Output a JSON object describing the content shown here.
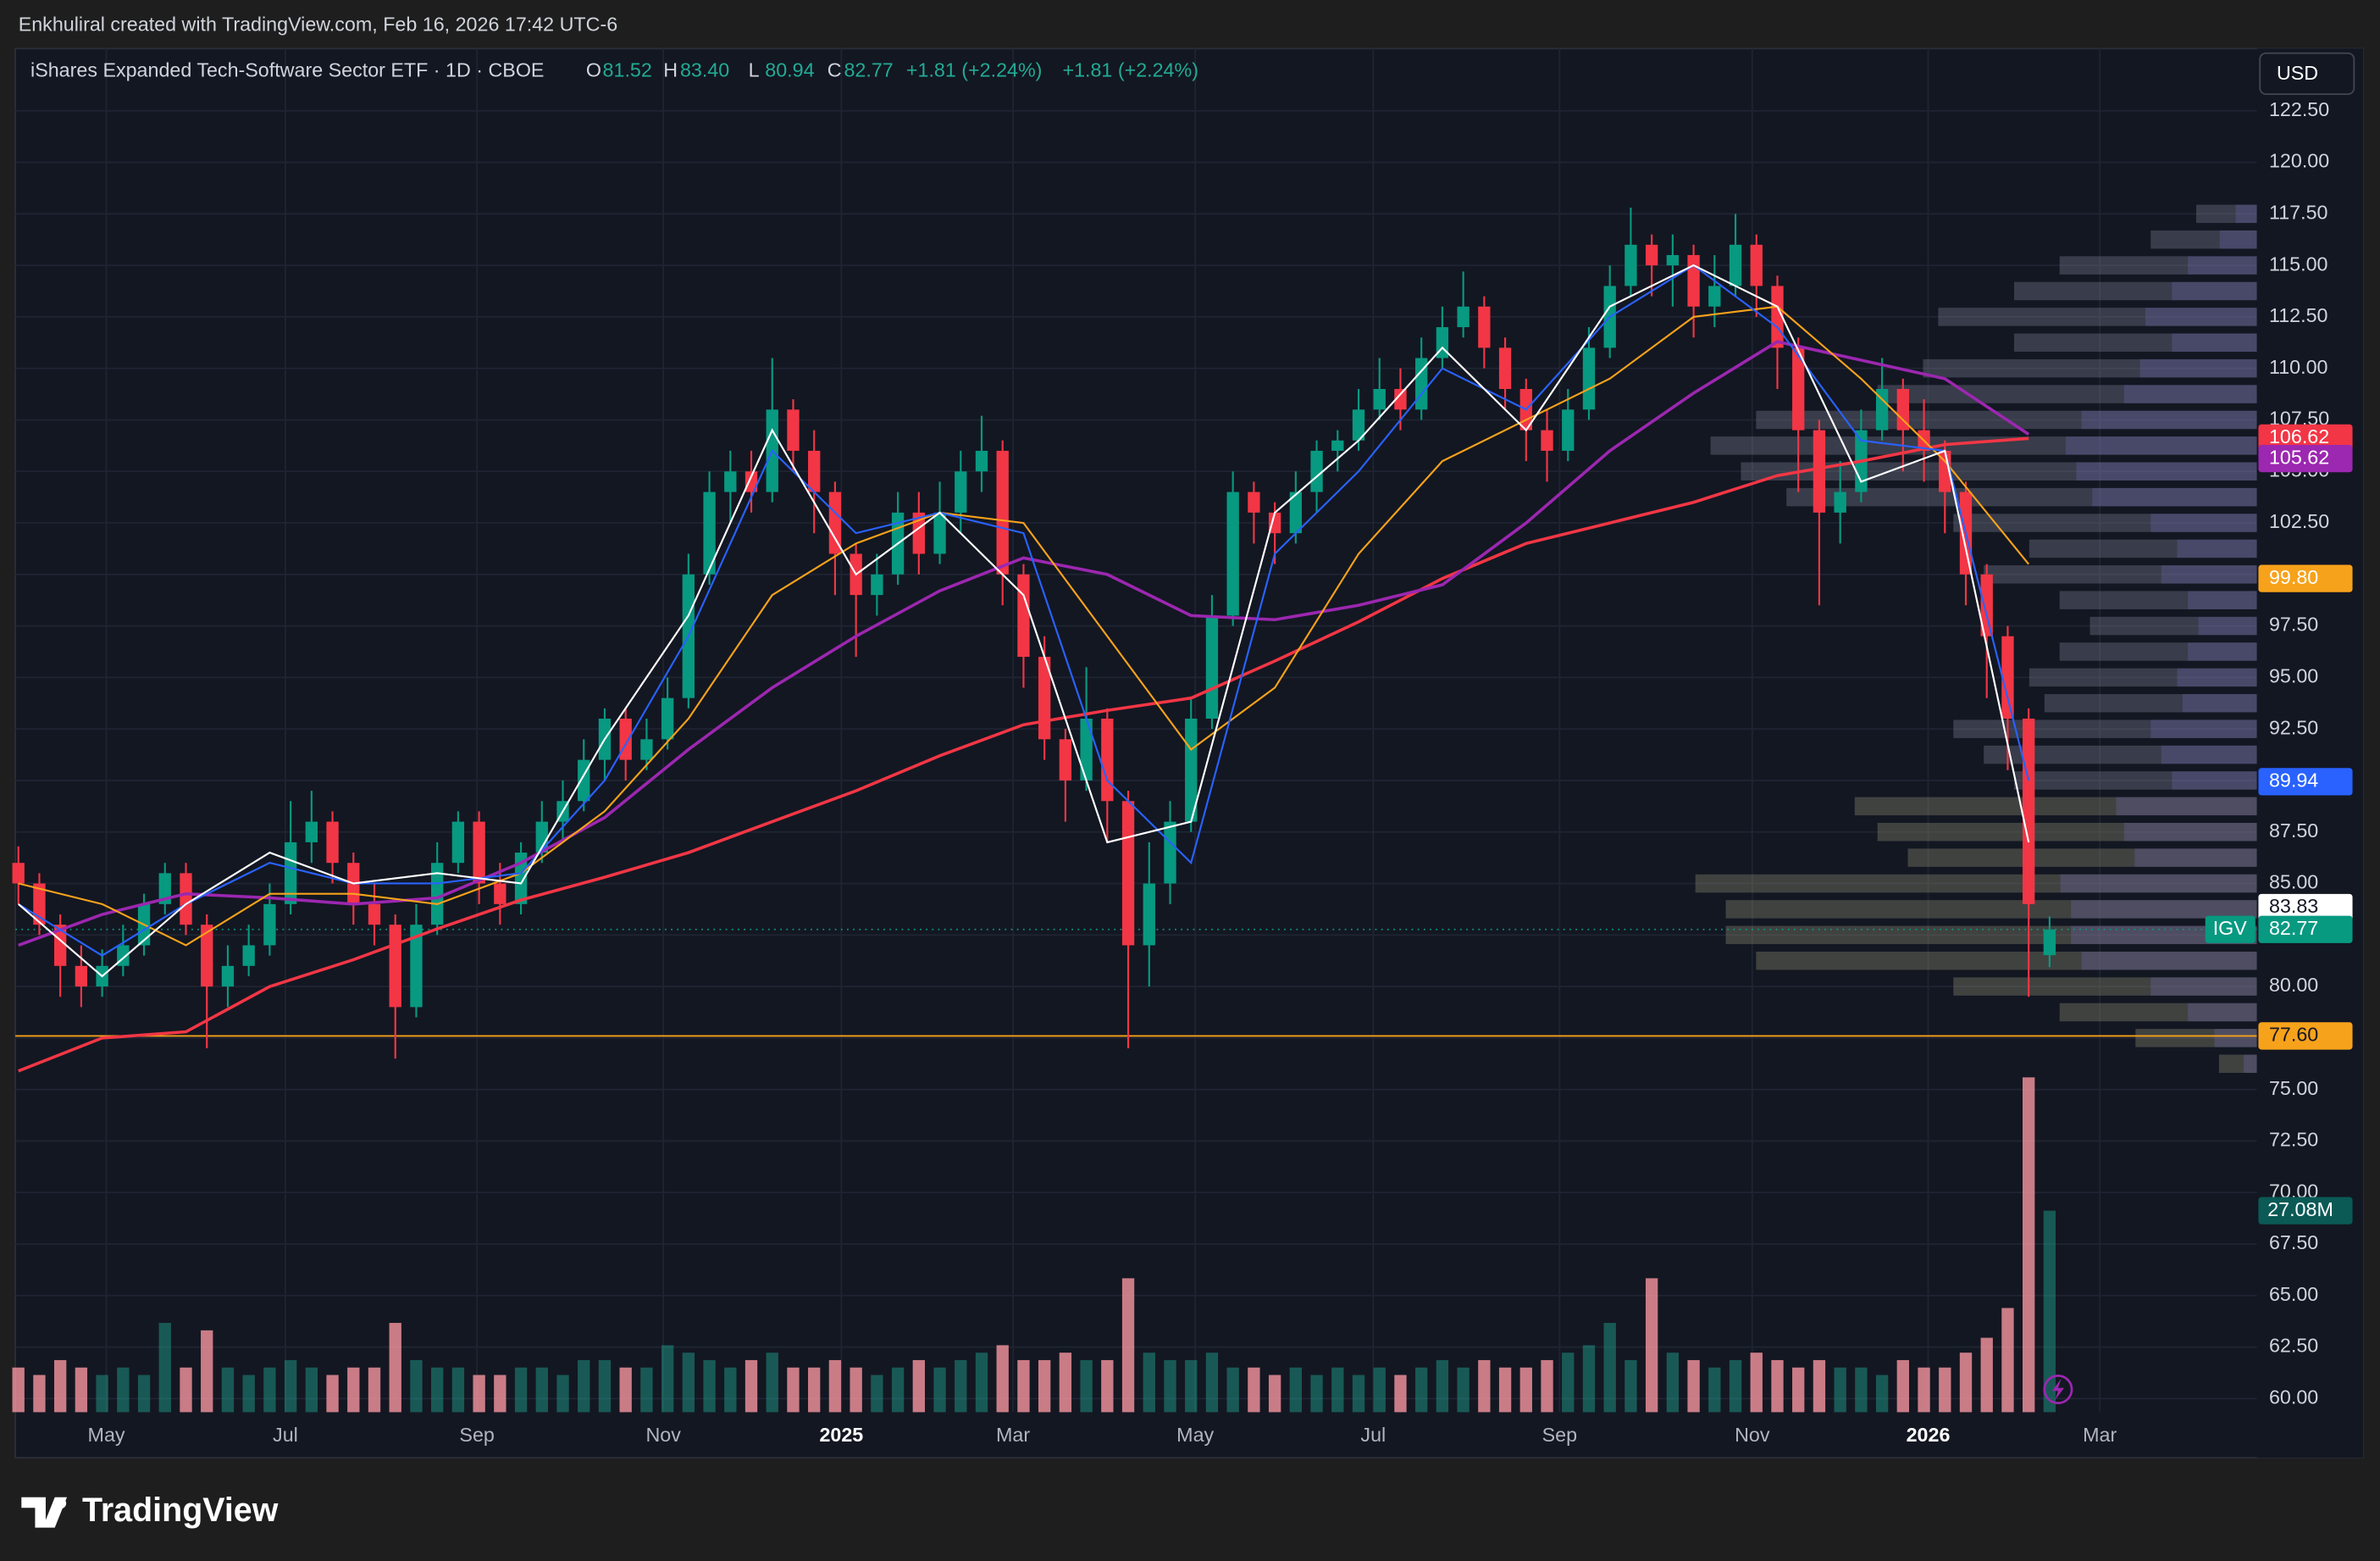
{
  "watermark": "Enkhuliral created with TradingView.com, Feb 16, 2026 17:42 UTC-6",
  "brand": "TradingView",
  "chart_data": {
    "type": "candlestick",
    "title": "iShares Expanded Tech-Software Sector ETF · 1D · CBOE",
    "legend_keys": [
      "O",
      "H",
      "L",
      "C"
    ],
    "legend_values": [
      81.52,
      {
        "value": 83.4,
        "label": "83.40"
      },
      80.94,
      82.77
    ],
    "change_labels": [
      "+1.81 (+2.24%)",
      "+1.81 (+2.24%)"
    ],
    "symbol": "IGV",
    "currency": "USD",
    "up_color": "#089981",
    "down_color": "#f23645",
    "xlim": [
      0,
      106.9
    ],
    "ylim": [
      59.34,
      125.52
    ],
    "volume_ylim": [
      0,
      50
    ],
    "xticks": [
      {
        "value": 4.2,
        "label": "May"
      },
      {
        "value": 12.75,
        "label": "Jul"
      },
      {
        "value": 21.9,
        "label": "Sep"
      },
      {
        "value": 30.8,
        "label": "Nov"
      },
      {
        "value": 39.3,
        "label": "2025"
      },
      {
        "value": 47.5,
        "label": "Mar"
      },
      {
        "value": 56.2,
        "label": "May"
      },
      {
        "value": 64.7,
        "label": "Jul"
      },
      {
        "value": 73.6,
        "label": "Sep"
      },
      {
        "value": 82.8,
        "label": "Nov"
      },
      {
        "value": 91.2,
        "label": "2026"
      },
      {
        "value": 99.4,
        "label": "Mar"
      }
    ],
    "yticks": [
      {
        "value": 60,
        "label": "60.00"
      },
      {
        "value": 62.5,
        "label": "62.50"
      },
      {
        "value": 65,
        "label": "65.00"
      },
      {
        "value": 67.5,
        "label": "67.50"
      },
      {
        "value": 70,
        "label": "70.00"
      },
      {
        "value": 72.5,
        "label": "72.50"
      },
      {
        "value": 75,
        "label": "75.00"
      },
      {
        "value": 77.5,
        "label": "77.50"
      },
      {
        "value": 80,
        "label": "80.00"
      },
      {
        "value": 82.5,
        "label": "82.50"
      },
      {
        "value": 85,
        "label": "85.00"
      },
      {
        "value": 87.5,
        "label": "87.50"
      },
      {
        "value": 90,
        "label": "90.00"
      },
      {
        "value": 92.5,
        "label": "92.50"
      },
      {
        "value": 95,
        "label": "95.00"
      },
      {
        "value": 97.5,
        "label": "97.50"
      },
      {
        "value": 100,
        "label": "100.00"
      },
      {
        "value": 102.5,
        "label": "102.50"
      },
      {
        "value": 105,
        "label": "105.00"
      },
      {
        "value": 107.5,
        "label": "107.50"
      },
      {
        "value": 110,
        "label": "110.00"
      },
      {
        "value": 112.5,
        "label": "112.50"
      },
      {
        "value": 115,
        "label": "115.00"
      },
      {
        "value": 117.5,
        "label": "117.50"
      },
      {
        "value": 120,
        "label": "120.00"
      },
      {
        "value": 122.5,
        "label": "122.50"
      }
    ],
    "candles": [
      [
        86,
        86.8,
        84,
        85
      ],
      [
        85,
        85.5,
        82.5,
        83
      ],
      [
        83,
        83.5,
        79.5,
        81
      ],
      [
        81,
        82,
        79,
        80
      ],
      [
        80,
        81.8,
        79.5,
        81
      ],
      [
        81,
        83,
        80.5,
        82
      ],
      [
        82,
        84.5,
        81.5,
        84
      ],
      [
        84,
        86,
        83.5,
        85.5
      ],
      [
        85.5,
        86,
        82.5,
        83
      ],
      [
        83,
        83.5,
        77,
        80
      ],
      [
        80,
        82,
        79,
        81
      ],
      [
        81,
        83,
        80.5,
        82
      ],
      [
        82,
        85,
        81.5,
        84
      ],
      [
        84,
        89,
        83.5,
        87
      ],
      [
        87,
        89.5,
        86,
        88
      ],
      [
        88,
        88.5,
        85,
        86
      ],
      [
        86,
        86.5,
        83,
        84
      ],
      [
        84,
        85,
        82,
        83
      ],
      [
        83,
        83.5,
        76.5,
        79
      ],
      [
        79,
        84,
        78.5,
        83
      ],
      [
        83,
        87,
        82.5,
        86
      ],
      [
        86,
        88.5,
        85.5,
        88
      ],
      [
        88,
        88.5,
        84,
        85
      ],
      [
        85,
        86,
        83,
        84
      ],
      [
        84,
        87,
        83.5,
        86.5
      ],
      [
        86.5,
        89,
        86,
        88
      ],
      [
        88,
        90,
        87,
        89
      ],
      [
        89,
        92,
        88.5,
        91
      ],
      [
        91,
        93.5,
        90,
        93
      ],
      [
        93,
        93.5,
        90,
        91
      ],
      [
        91,
        93,
        90.5,
        92
      ],
      [
        92,
        95,
        91.5,
        94
      ],
      [
        94,
        101,
        93.5,
        100
      ],
      [
        100,
        105,
        99.5,
        104
      ],
      [
        104,
        106,
        102.5,
        105
      ],
      [
        105,
        106,
        103,
        104
      ],
      [
        104,
        110.5,
        103.5,
        108
      ],
      [
        108,
        108.5,
        105,
        106
      ],
      [
        106,
        107,
        102,
        104
      ],
      [
        104,
        104.5,
        99,
        101
      ],
      [
        101,
        101.5,
        96,
        99
      ],
      [
        99,
        101,
        98,
        100
      ],
      [
        100,
        104,
        99.5,
        103
      ],
      [
        103,
        104,
        100,
        101
      ],
      [
        101,
        104.5,
        100.5,
        103
      ],
      [
        103,
        106,
        102,
        105
      ],
      [
        105,
        107.7,
        104,
        106
      ],
      [
        106,
        106.5,
        98.5,
        100
      ],
      [
        100,
        100.5,
        94.5,
        96
      ],
      [
        96,
        97,
        91,
        92
      ],
      [
        92,
        92.5,
        88,
        90
      ],
      [
        90,
        95.5,
        89.5,
        93
      ],
      [
        93,
        93.5,
        87,
        89
      ],
      [
        89,
        89.5,
        77,
        82
      ],
      [
        82,
        87,
        80,
        85
      ],
      [
        85,
        89,
        84,
        88
      ],
      [
        88,
        94,
        87.5,
        93
      ],
      [
        93,
        99,
        92.5,
        98
      ],
      [
        98,
        105,
        97.5,
        104
      ],
      [
        104,
        104.5,
        101.5,
        103
      ],
      [
        103,
        103.5,
        100.5,
        102
      ],
      [
        102,
        105,
        101.5,
        104
      ],
      [
        104,
        106.5,
        103,
        106
      ],
      [
        106,
        107,
        105,
        106.5
      ],
      [
        106.5,
        109,
        106,
        108
      ],
      [
        108,
        110.5,
        107.5,
        109
      ],
      [
        109,
        110,
        107,
        108
      ],
      [
        108,
        111.5,
        107.5,
        110.5
      ],
      [
        110.5,
        113,
        110,
        112
      ],
      [
        112,
        114.7,
        111.5,
        113
      ],
      [
        113,
        113.5,
        110,
        111
      ],
      [
        111,
        111.5,
        108,
        109
      ],
      [
        109,
        109.5,
        105.5,
        107
      ],
      [
        107,
        108,
        104.5,
        106
      ],
      [
        106,
        109,
        105.5,
        108
      ],
      [
        108,
        112,
        107.5,
        111
      ],
      [
        111,
        115,
        110.5,
        114
      ],
      [
        114,
        117.8,
        113.5,
        116
      ],
      [
        116,
        116.5,
        113.5,
        115
      ],
      [
        115,
        116.5,
        113,
        115.5
      ],
      [
        115.5,
        116,
        111.5,
        113
      ],
      [
        113,
        115.5,
        112,
        114
      ],
      [
        114,
        117.5,
        113.5,
        116
      ],
      [
        116,
        116.5,
        112.5,
        114
      ],
      [
        114,
        114.5,
        109,
        111
      ],
      [
        111,
        111.5,
        104,
        107
      ],
      [
        107,
        107.5,
        98.5,
        103
      ],
      [
        103,
        105.5,
        101.5,
        104
      ],
      [
        104,
        108,
        103.5,
        107
      ],
      [
        107,
        110.5,
        106.5,
        109
      ],
      [
        109,
        109.5,
        105,
        107
      ],
      [
        107,
        108.5,
        104.5,
        106
      ],
      [
        106,
        106.5,
        102,
        104
      ],
      [
        104,
        104.5,
        98.5,
        100
      ],
      [
        100,
        100.5,
        94,
        97
      ],
      [
        97,
        97.5,
        90.5,
        93
      ],
      [
        93,
        93.5,
        79.5,
        84
      ],
      [
        81.52,
        83.4,
        80.94,
        82.77
      ]
    ],
    "volumes": [
      6,
      5,
      7,
      6,
      5,
      6,
      5,
      12,
      6,
      11,
      6,
      5,
      6,
      7,
      6,
      5,
      6,
      6,
      12,
      7,
      6,
      6,
      5,
      5,
      6,
      6,
      5,
      7,
      7,
      6,
      6,
      9,
      8,
      7,
      6,
      7,
      8,
      6,
      6,
      7,
      6,
      5,
      6,
      7,
      6,
      7,
      8,
      9,
      7,
      7,
      8,
      7,
      7,
      18,
      8,
      7,
      7,
      8,
      6,
      6,
      5,
      6,
      5,
      6,
      5,
      6,
      5,
      6,
      7,
      6,
      7,
      6,
      6,
      7,
      8,
      9,
      12,
      7,
      18,
      8,
      7,
      6,
      7,
      8,
      7,
      6,
      7,
      6,
      6,
      5,
      7,
      6,
      6,
      8,
      10,
      14,
      45,
      27.08
    ],
    "volume_value_label": "27.08M",
    "ma_x": [
      0,
      4,
      8,
      12,
      16,
      20,
      24,
      28,
      32,
      36,
      40,
      44,
      48,
      52,
      56,
      60,
      64,
      68,
      72,
      76,
      80,
      84,
      88,
      92,
      96
    ],
    "series": [
      {
        "color": "#f23645",
        "values": [
          75.9,
          77.5,
          77.8,
          80,
          81.3,
          82.8,
          84.2,
          85.3,
          86.5,
          88,
          89.5,
          91.2,
          92.7,
          93.4,
          94,
          95.8,
          97.7,
          99.8,
          101.5,
          102.5,
          103.5,
          104.8,
          105.5,
          106.3,
          106.6
        ]
      },
      {
        "color": "#9c27b0",
        "values": [
          82,
          83.5,
          84.5,
          84.3,
          84,
          84.3,
          86,
          88.2,
          91.5,
          94.5,
          97,
          99.2,
          100.8,
          100,
          98,
          97.8,
          98.5,
          99.5,
          102.5,
          106,
          108.8,
          111.3,
          110.4,
          109.5,
          106.8
        ]
      },
      {
        "color": "#f7a21b",
        "values": [
          85,
          84,
          82,
          84.5,
          84.5,
          84,
          85.5,
          88.5,
          93,
          99,
          101.5,
          103,
          102.5,
          97,
          91.5,
          94.5,
          101,
          105.5,
          107.5,
          109.5,
          112.5,
          113,
          109.5,
          105.5,
          100.5
        ]
      },
      {
        "color": "#2962ff",
        "values": [
          84,
          81.5,
          84,
          86,
          85,
          85,
          85.5,
          90,
          97,
          106,
          102,
          103,
          102,
          90,
          86,
          101,
          105,
          110,
          108,
          112.5,
          115,
          112,
          106.5,
          106,
          90
        ]
      },
      {
        "color": "#ffffff",
        "values": [
          84,
          80.5,
          84,
          86.5,
          85,
          85.5,
          85,
          92,
          98,
          107,
          100,
          103,
          99,
          87,
          88,
          103,
          106.5,
          111,
          107,
          113,
          115,
          113,
          104.5,
          106,
          87
        ]
      }
    ],
    "price_labels": [
      {
        "value": 106.62,
        "label": "106.62",
        "color": "#f23645"
      },
      {
        "value": 105.62,
        "label": "105.62",
        "color": "#9c27b0"
      },
      {
        "value": 99.8,
        "label": "99.80",
        "color": "#f7a21b"
      },
      {
        "value": 89.94,
        "label": "89.94",
        "color": "#2962ff"
      },
      {
        "value": 83.83,
        "label": "83.83",
        "color": "#ffffff"
      }
    ],
    "horizontal_line": {
      "value": 77.6,
      "label": "77.60",
      "color": "#f7a21b"
    },
    "volume_profile": {
      "prices": [
        117.5,
        116.25,
        115,
        113.75,
        112.5,
        111.25,
        110,
        108.75,
        107.5,
        106.25,
        105,
        103.75,
        102.5,
        101.25,
        100,
        98.75,
        97.5,
        96.25,
        95,
        93.75,
        92.5,
        91.25,
        90,
        88.75,
        87.5,
        86.25,
        85,
        83.75,
        82.5,
        81.25,
        80,
        78.75,
        77.5,
        76.25
      ],
      "volumes": [
        4,
        7,
        13,
        16,
        21,
        16,
        22,
        25,
        33,
        36,
        34,
        31,
        20,
        15,
        18,
        13,
        11,
        13,
        15,
        14,
        20,
        18,
        16,
        26.5,
        25,
        23,
        37,
        35,
        35,
        33,
        20,
        13,
        8,
        2.5
      ]
    }
  }
}
